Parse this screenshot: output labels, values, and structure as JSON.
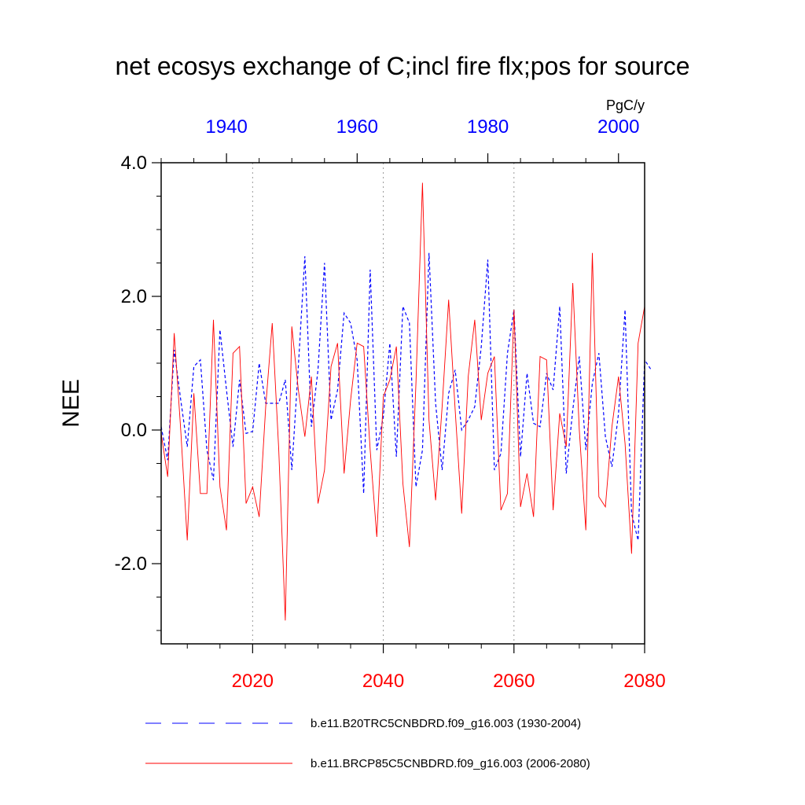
{
  "chart_data": {
    "type": "line",
    "title": "net ecosys exchange of C;incl fire flx;pos for source",
    "units": "PgC/y",
    "ylabel": "NEE",
    "ylim": [
      -3.2,
      4.0
    ],
    "y_ticks": [
      -2.0,
      0.0,
      2.0,
      4.0
    ],
    "y_tick_labels": [
      "-2.0",
      "0.0",
      "2.0",
      "4.0"
    ],
    "bottom_axis": {
      "range": [
        2006,
        2080
      ],
      "ticks": [
        2020,
        2040,
        2060,
        2080
      ],
      "tick_labels": [
        "2020",
        "2040",
        "2060",
        "2080"
      ],
      "color": "#ff0000"
    },
    "top_axis": {
      "range": [
        1930,
        2004
      ],
      "ticks": [
        1940,
        1960,
        1980,
        2000
      ],
      "tick_labels": [
        "1940",
        "1960",
        "1980",
        "2000"
      ],
      "color": "#0000ff"
    },
    "grid_x_at": [
      2020,
      2040,
      2060
    ],
    "series": [
      {
        "name": "b.e11.B20TRC5CNBDRD.f09_g16.003 (1930-2004)",
        "axis": "top",
        "color": "#0000ff",
        "style": "dashed",
        "x_start": 1930,
        "values": [
          0.05,
          -0.45,
          1.2,
          0.45,
          -0.25,
          0.95,
          1.05,
          -0.3,
          -0.75,
          1.5,
          0.6,
          -0.25,
          0.75,
          -0.05,
          -0.02,
          1.0,
          0.4,
          0.4,
          0.4,
          0.75,
          -0.6,
          0.95,
          2.6,
          0.05,
          0.9,
          2.5,
          0.15,
          0.6,
          1.75,
          1.6,
          1.05,
          -0.95,
          2.4,
          -0.3,
          0.2,
          1.3,
          -0.4,
          1.85,
          1.6,
          -0.85,
          -0.3,
          2.65,
          0.4,
          -0.6,
          0.55,
          0.9,
          0.0,
          0.15,
          0.35,
          1.25,
          2.55,
          -0.6,
          -0.35,
          1.15,
          1.8,
          -0.4,
          0.85,
          0.1,
          0.05,
          0.85,
          0.6,
          1.85,
          -0.65,
          0.3,
          1.1,
          -0.3,
          0.7,
          1.15,
          -0.1,
          -0.55,
          0.25,
          1.8,
          -1.25,
          -1.65,
          1.05,
          0.9
        ]
      },
      {
        "name": "b.e11.BRCP85C5CNBDRD.f09_g16.003 (2006-2080)",
        "axis": "bottom",
        "color": "#ff0000",
        "style": "solid",
        "x_start": 2006,
        "values": [
          -0.05,
          -0.7,
          1.45,
          0.0,
          -1.65,
          0.55,
          -0.95,
          -0.95,
          1.65,
          -0.85,
          -1.5,
          1.15,
          1.25,
          -1.1,
          -0.85,
          -1.3,
          0.35,
          1.6,
          -0.3,
          -2.85,
          1.55,
          0.6,
          -0.1,
          0.8,
          -1.1,
          -0.6,
          0.95,
          1.3,
          -0.65,
          0.45,
          1.3,
          1.25,
          -0.3,
          -1.6,
          0.5,
          0.75,
          1.25,
          -0.8,
          -1.75,
          0.7,
          3.7,
          0.15,
          -1.05,
          0.35,
          1.95,
          0.3,
          -1.25,
          0.8,
          1.65,
          0.15,
          0.85,
          1.1,
          -1.2,
          -0.95,
          1.8,
          -1.15,
          -0.65,
          -1.3,
          1.1,
          1.05,
          -1.2,
          0.25,
          -0.25,
          2.2,
          0.0,
          -1.5,
          2.65,
          -1.0,
          -1.15,
          0.05,
          0.8,
          -0.2,
          -1.85,
          1.3,
          1.85
        ]
      }
    ],
    "legend": {
      "position": "bottom",
      "entries": [
        "b.e11.B20TRC5CNBDRD.f09_g16.003 (1930-2004)",
        "b.e11.BRCP85C5CNBDRD.f09_g16.003 (2006-2080)"
      ]
    }
  }
}
